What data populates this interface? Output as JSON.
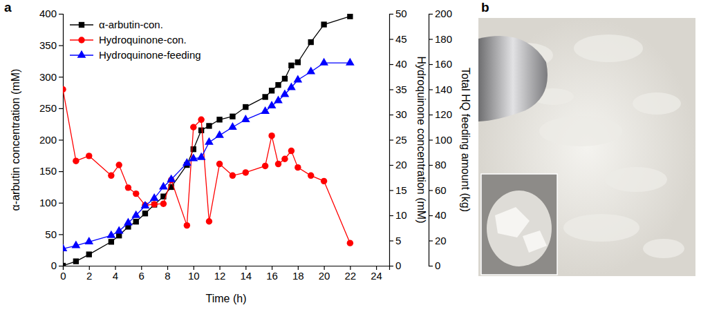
{
  "chart_data": [
    {
      "type": "line",
      "title": "a",
      "xlabel": "Time (h)",
      "ylabel": "α-arbutin concentration (mM)",
      "y2label": "Hydroquinone concentration (mM)",
      "y3label": "Total HQ feeding amount (kg)",
      "x": [
        0,
        1,
        2,
        3.7,
        4.3,
        5,
        5.6,
        6.3,
        7,
        7.7,
        8.3,
        9.5,
        10,
        10.6,
        11.2,
        12,
        13,
        14,
        15.5,
        16,
        16.5,
        17,
        17.5,
        18,
        19,
        20,
        22
      ],
      "xlim": [
        0,
        25
      ],
      "xticks": [
        0,
        2,
        4,
        6,
        8,
        10,
        12,
        14,
        16,
        18,
        20,
        22,
        24
      ],
      "ylim": [
        0,
        400
      ],
      "yticks": [
        0,
        50,
        100,
        150,
        200,
        250,
        300,
        350,
        400
      ],
      "y2lim": [
        0,
        50
      ],
      "y2ticks": [
        0,
        5,
        10,
        15,
        20,
        25,
        30,
        35,
        40,
        45,
        50
      ],
      "y3lim": [
        0,
        200
      ],
      "y3ticks": [
        0,
        20,
        40,
        60,
        80,
        100,
        120,
        140,
        160,
        180,
        200
      ],
      "legend": "upper left",
      "series": [
        {
          "name": "α-arbutin-con.",
          "color": "#000000",
          "marker": "square",
          "line_style": "solid",
          "axis": "y",
          "values": [
            0,
            7,
            18,
            38,
            48,
            62,
            70,
            83,
            97,
            110,
            125,
            160,
            185,
            215,
            222,
            232,
            237,
            252,
            268,
            278,
            287,
            297,
            318,
            323,
            355,
            383,
            396
          ]
        },
        {
          "name": "Hydroquinone-con.",
          "color": "#ff0000",
          "marker": "circle",
          "line_style": "solid",
          "axis": "y2",
          "values": [
            35,
            20.8,
            21.8,
            17.9,
            20,
            15.5,
            14.3,
            12,
            12.2,
            12.3,
            17,
            8,
            27.5,
            29,
            8.8,
            20.2,
            17.9,
            18.5,
            19.8,
            25.8,
            20.2,
            21.2,
            22.8,
            19.5,
            17.9,
            16.8,
            4.5
          ]
        },
        {
          "name": "Hydroquinone-feeding",
          "color": "#0000ff",
          "marker": "triangle",
          "line_style": "solid",
          "axis": "y3",
          "values": [
            13.5,
            16,
            19,
            24,
            27.5,
            34,
            40,
            47.5,
            53.5,
            62.5,
            68.5,
            81.5,
            85,
            86,
            98,
            103.5,
            110,
            116,
            122.5,
            127,
            131,
            136,
            141.5,
            147.5,
            154,
            161,
            161
          ]
        }
      ]
    },
    {
      "type": "image",
      "title": "b"
    }
  ]
}
